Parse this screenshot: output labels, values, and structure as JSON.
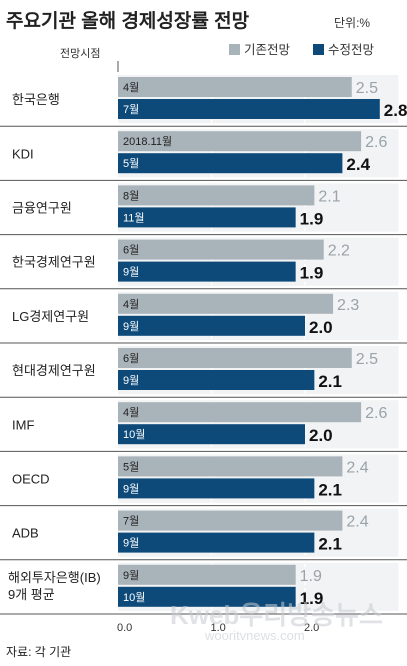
{
  "title": "주요기관 올해 경제성장률 전망",
  "unit": "단위:%",
  "time_header": "전망시점",
  "source": "자료: 각 기관",
  "watermark": "Kweb우리방송뉴스",
  "watermark_url": "wooritvnews.com",
  "colors": {
    "previous": "#a9b3ba",
    "revised": "#0d4a7a",
    "separator": "#555555",
    "band": "#f1f3f4"
  },
  "chart_data": {
    "type": "bar",
    "orientation": "horizontal",
    "xlim": [
      0,
      3.0
    ],
    "xticks": [
      0.0,
      1.0,
      2.0
    ],
    "xtick_labels": [
      "0.0",
      "1.0",
      "2.0"
    ],
    "legend": {
      "position": "top-right",
      "entries": [
        "기존전망",
        "수정전망"
      ]
    },
    "categories": [
      "한국은행",
      "KDI",
      "금융연구원",
      "한국경제연구원",
      "LG경제연구원",
      "현대경제연구원",
      "IMF",
      "OECD",
      "ADB",
      "해외투자은행(IB)|9개 평균"
    ],
    "series": [
      {
        "name": "기존전망",
        "values": [
          2.5,
          2.6,
          2.1,
          2.2,
          2.3,
          2.5,
          2.6,
          2.4,
          2.4,
          1.9
        ],
        "value_labels": [
          "2.5",
          "2.6",
          "2.1",
          "2.2",
          "2.3",
          "2.5",
          "2.6",
          "2.4",
          "2.4",
          "1.9"
        ],
        "time_labels": [
          "4월",
          "2018.11월",
          "8월",
          "6월",
          "4월",
          "6월",
          "4월",
          "5월",
          "7월",
          "9월"
        ]
      },
      {
        "name": "수정전망",
        "values": [
          2.8,
          2.4,
          1.9,
          1.9,
          2.0,
          2.1,
          2.0,
          2.1,
          2.1,
          1.9
        ],
        "value_labels": [
          "2.8",
          "2.4",
          "1.9",
          "1.9",
          "2.0",
          "2.1",
          "2.0",
          "2.1",
          "2.1",
          "1.9"
        ],
        "time_labels": [
          "7월",
          "5월",
          "11월",
          "9월",
          "9월",
          "9월",
          "10월",
          "9월",
          "9월",
          "10월"
        ]
      }
    ]
  }
}
